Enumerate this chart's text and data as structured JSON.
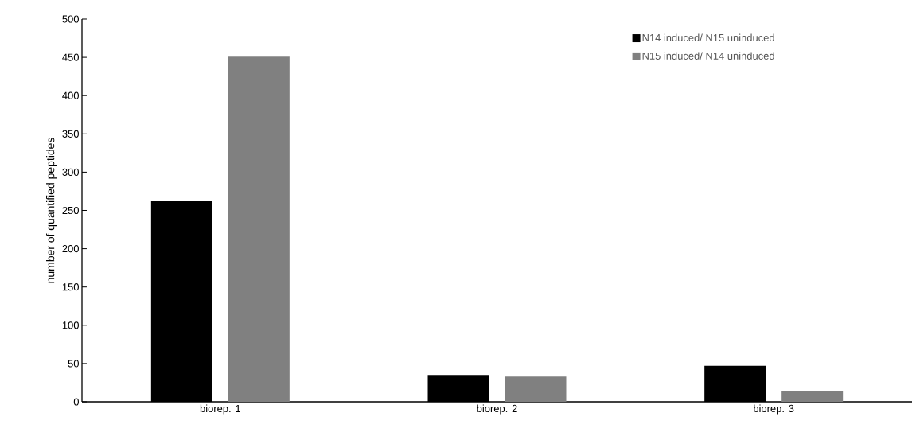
{
  "chart_data": {
    "type": "bar",
    "ylabel": "number of quantified peptides",
    "categories": [
      "biorep. 1",
      "biorep. 2",
      "biorep. 3"
    ],
    "series": [
      {
        "name": "N14 induced/ N15 uninduced",
        "color": "#000000",
        "values": [
          262,
          35,
          47
        ]
      },
      {
        "name": "N15 induced/ N14 uninduced",
        "color": "#808080",
        "values": [
          451,
          33,
          14
        ]
      }
    ],
    "ylim": [
      0,
      500
    ],
    "yticks": [
      0,
      50,
      100,
      150,
      200,
      250,
      300,
      350,
      400,
      450,
      500
    ],
    "legend": "top right"
  }
}
